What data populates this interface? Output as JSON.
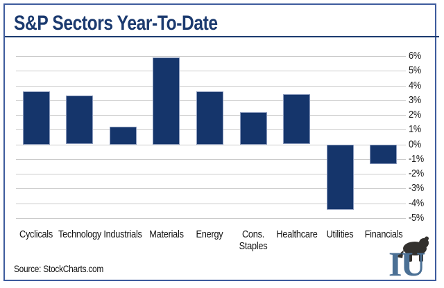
{
  "header": {
    "title": "S&P Sectors Year-To-Date"
  },
  "footer": {
    "source": "Source: StockCharts.com",
    "logo_text": "IU"
  },
  "colors": {
    "bar_fill": "#15356b",
    "bar_outline": "#8d9cbe",
    "title_navy": "#1b3a6f",
    "frame_border": "#3d5b9d",
    "gridline": "#c9c9c9",
    "tick_text": "#1a1a1a",
    "logo_letters": "#4b7095",
    "logo_animal": "#33312e"
  },
  "chart_data": {
    "type": "bar",
    "title": "S&P Sectors Year-To-Date",
    "categories": [
      "Cyclicals",
      "Technology",
      "Industrials",
      "Materials",
      "Energy",
      "Cons.\nStaples",
      "Healthcare",
      "Utilities",
      "Financials"
    ],
    "values": [
      3.6,
      3.3,
      1.2,
      5.9,
      3.6,
      2.2,
      3.4,
      -4.4,
      -1.3
    ],
    "unit": "%",
    "ylim": [
      -5,
      6
    ],
    "yticks": [
      6,
      5,
      4,
      3,
      2,
      1,
      0,
      -1,
      -2,
      -3,
      -4,
      -5
    ],
    "ytick_labels": [
      "6%",
      "5%",
      "4%",
      "3%",
      "2%",
      "1%",
      "0%",
      "-1%",
      "-2%",
      "-3%",
      "-4%",
      "-5%"
    ],
    "xlabel": "",
    "ylabel": "",
    "grid": true,
    "legend": null,
    "tick_side": "right",
    "bar_color": "#15356b"
  }
}
